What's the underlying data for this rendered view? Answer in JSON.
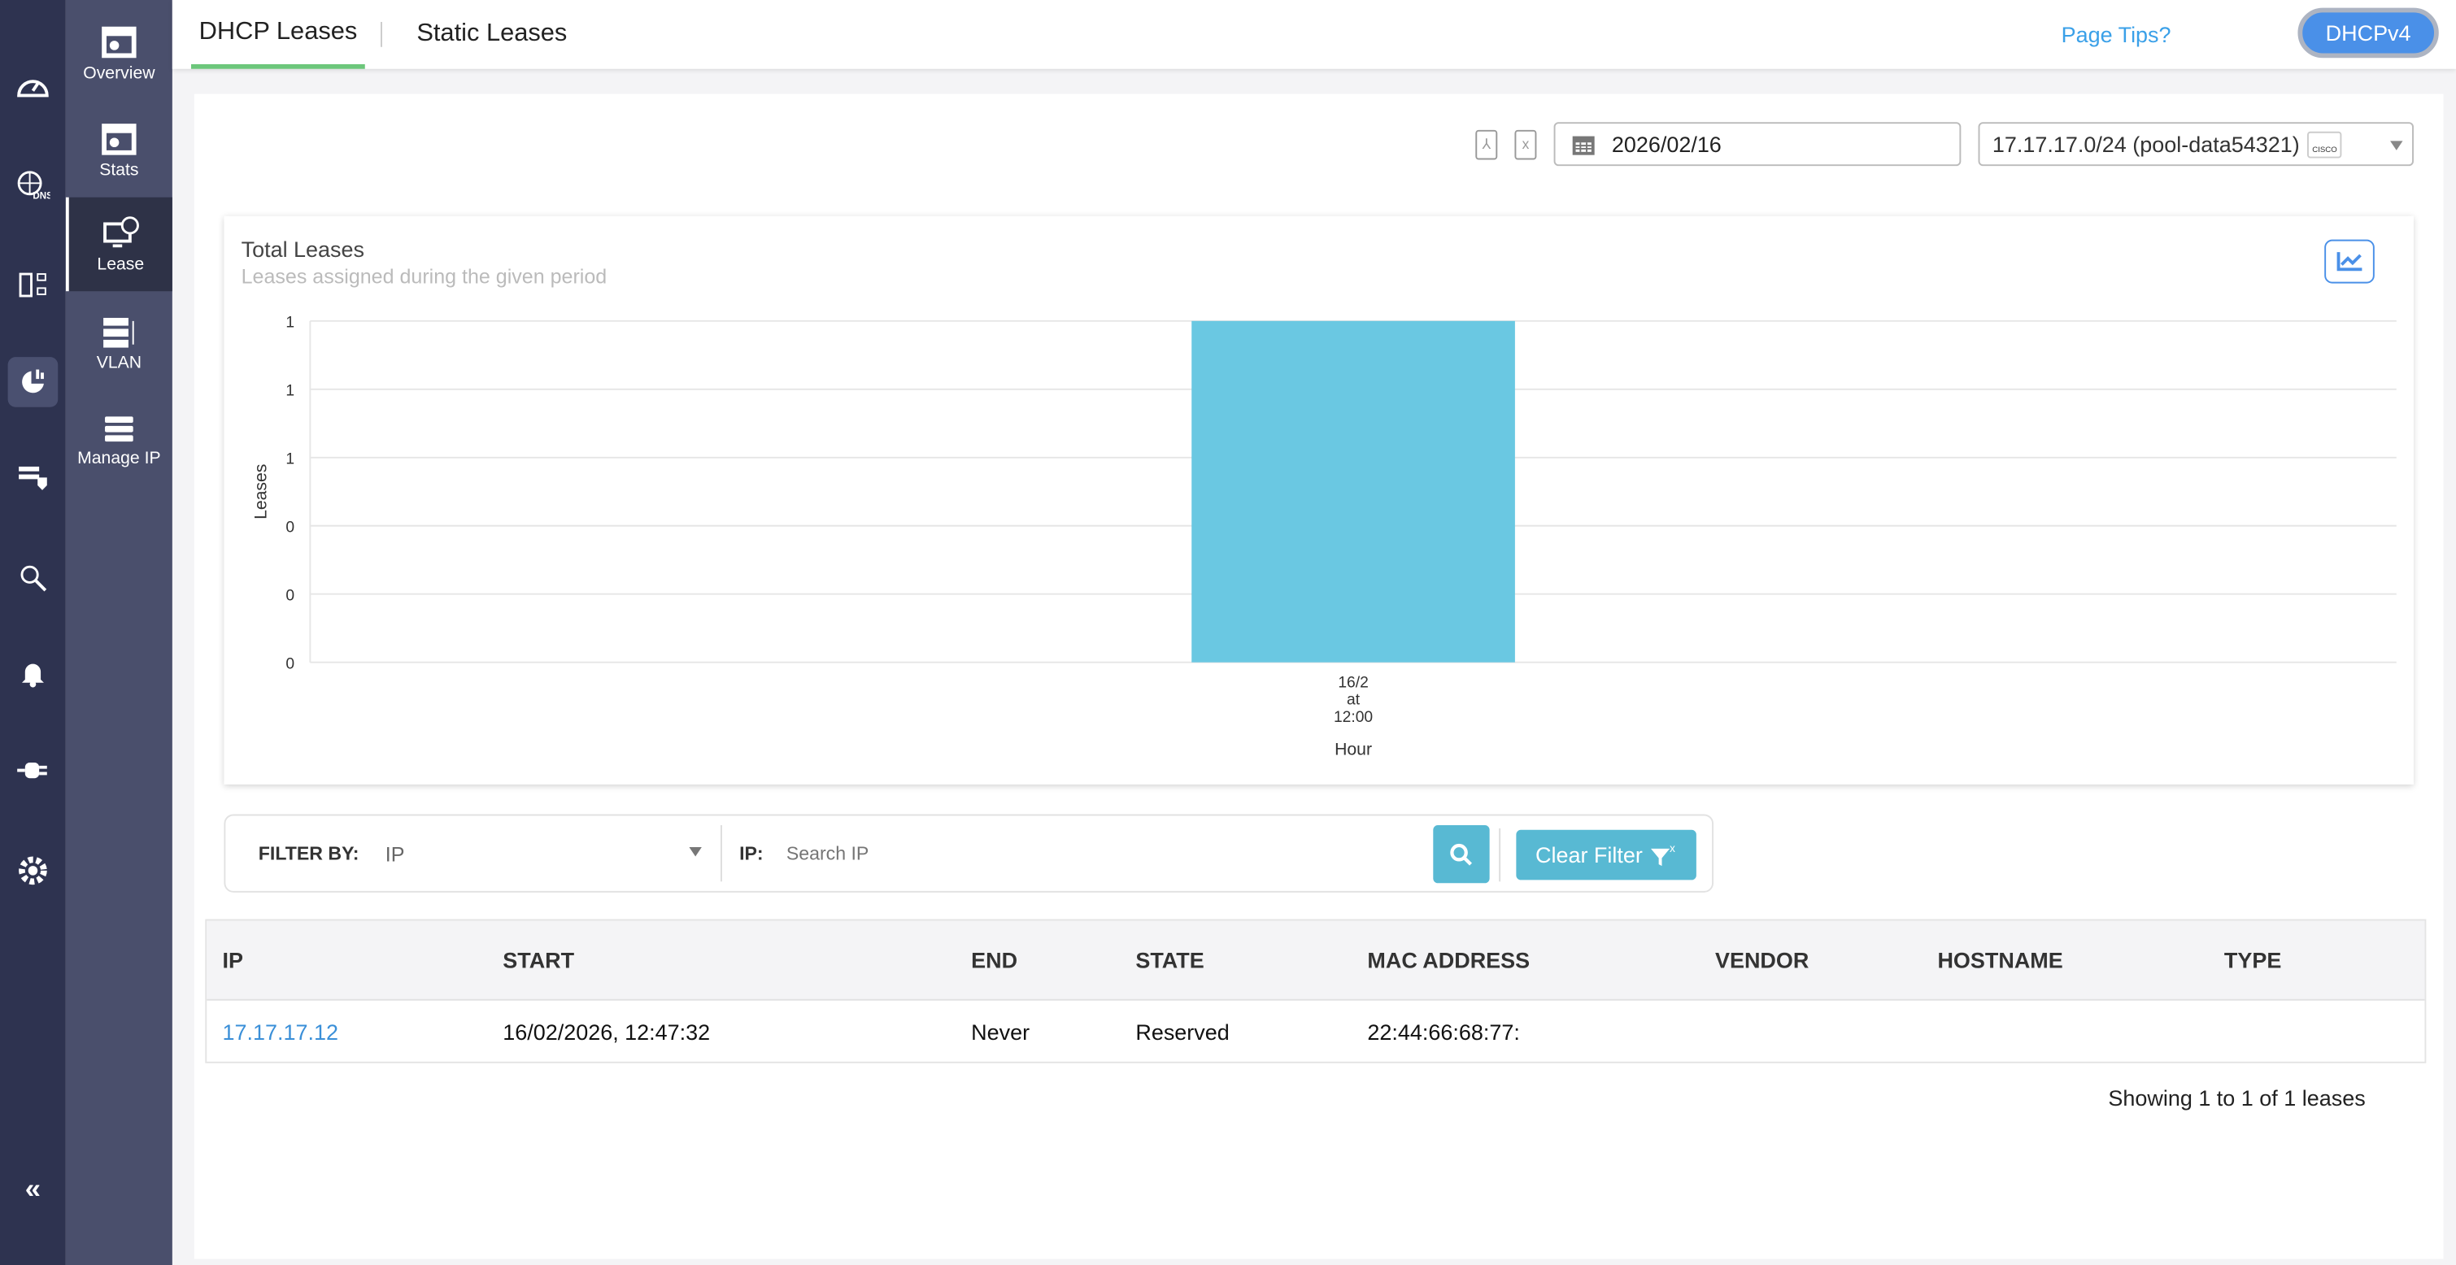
{
  "rail": {
    "icons": [
      "speedometer-icon",
      "globe-dns-icon",
      "server-network-icon",
      "pie-chart-icon",
      "server-shield-icon",
      "search-network-icon",
      "bell-icon",
      "plug-icon",
      "gear-wrench-icon"
    ],
    "collapse_icon": "double-chevron-left-icon"
  },
  "subnav": {
    "items": [
      {
        "label": "Overview"
      },
      {
        "label": "Stats"
      },
      {
        "label": "Lease",
        "active": true
      },
      {
        "label": "VLAN"
      },
      {
        "label": "Manage IP"
      }
    ]
  },
  "header": {
    "tabs": [
      {
        "label": "DHCP Leases",
        "active": true
      },
      {
        "label": "Static Leases"
      }
    ],
    "page_tips": "Page Tips?",
    "protocol": "DHCPv4"
  },
  "toolbar": {
    "date": "2026/02/16",
    "pool": "17.17.17.0/24 (pool-data54321)",
    "pool_logo": "cisco"
  },
  "chart_card": {
    "title": "Total Leases",
    "subtitle": "Leases assigned during the given period"
  },
  "chart_data": {
    "type": "bar",
    "categories": [
      "16/2 at 12:00"
    ],
    "category_lines": [
      "16/2",
      "at",
      "12:00"
    ],
    "values": [
      1
    ],
    "xlabel": "Hour",
    "ylabel": "Leases",
    "ylim": [
      0,
      1
    ],
    "y_ticks": [
      0,
      0.2,
      0.4,
      0.6,
      0.8,
      1
    ],
    "y_tick_labels": [
      "0",
      "0",
      "0",
      "1",
      "1",
      "1"
    ],
    "grid": true,
    "color": "#6ac8e2"
  },
  "filter": {
    "label": "FILTER BY:",
    "field": "IP",
    "ip_label": "IP:",
    "search_placeholder": "Search IP",
    "clear": "Clear Filter"
  },
  "table": {
    "columns": [
      "IP",
      "START",
      "END",
      "STATE",
      "MAC ADDRESS",
      "VENDOR",
      "HOSTNAME",
      "TYPE"
    ],
    "rows": [
      [
        "17.17.17.12",
        "16/02/2026, 12:47:32",
        "Never",
        "Reserved",
        "22:44:66:68:77:",
        "",
        "",
        ""
      ]
    ]
  },
  "footer": {
    "showing": "Showing 1 to 1 of 1 leases"
  },
  "colors": {
    "accent": "#4a90e8",
    "teal": "#58b9d3",
    "link": "#3a8fd8",
    "tab_underline": "#6cc77b"
  }
}
